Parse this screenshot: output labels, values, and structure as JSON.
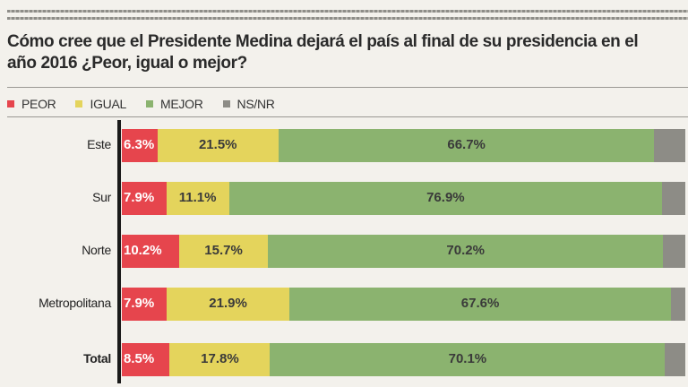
{
  "chart_data": {
    "type": "bar",
    "orientation": "horizontal-stacked",
    "title": "Cómo cree que el Presidente Medina dejará el país al final  de su presidencia en el año 2016 ¿Peor, igual o mejor?",
    "categories": [
      "Este",
      "Sur",
      "Norte",
      "Metropolitana",
      "Total"
    ],
    "series": [
      {
        "name": "PEOR",
        "color": "#e6454d",
        "values": [
          6.3,
          7.9,
          10.2,
          7.9,
          8.5
        ],
        "labels": [
          "6.3%",
          "7.9%",
          "10.2%",
          "7.9%",
          "8.5%"
        ]
      },
      {
        "name": "IGUAL",
        "color": "#e4d45c",
        "values": [
          21.5,
          11.1,
          15.7,
          21.9,
          17.8
        ],
        "labels": [
          "21.5%",
          "11.1%",
          "15.7%",
          "21.9%",
          "17.8%"
        ]
      },
      {
        "name": "MEJOR",
        "color": "#8bb36f",
        "values": [
          66.7,
          76.9,
          70.2,
          67.6,
          70.1
        ],
        "labels": [
          "66.7%",
          "76.9%",
          "70.2%",
          "67.6%",
          "70.1%"
        ]
      },
      {
        "name": "NS/NR",
        "color": "#8d8c86",
        "values": [
          5.5,
          4.1,
          3.9,
          2.6,
          3.6
        ]
      }
    ],
    "legend": "top-left",
    "xlim": [
      0,
      100
    ]
  }
}
